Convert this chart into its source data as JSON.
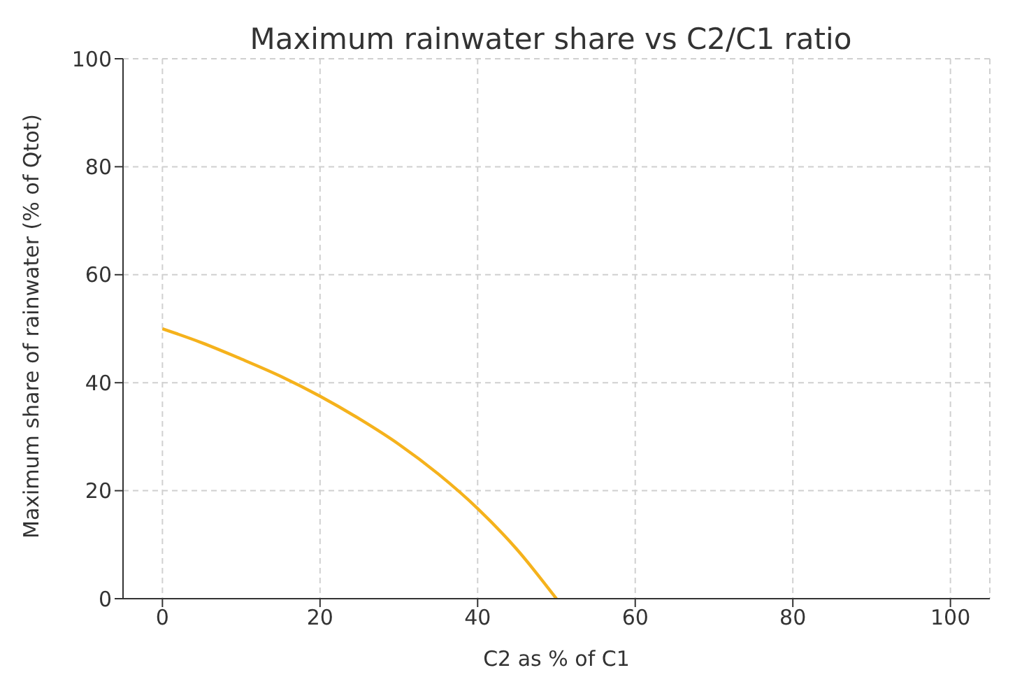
{
  "chart_data": {
    "type": "line",
    "title": "Maximum rainwater share vs C2/C1 ratio",
    "xlabel": "C2 as % of C1",
    "ylabel": "Maximum share of rainwater (% of Qtot)",
    "x": [
      0,
      5,
      10,
      15,
      20,
      25,
      30,
      35,
      40,
      45,
      50
    ],
    "series": [
      {
        "color": "#f5b21c",
        "values": [
          50,
          47.4,
          44.4,
          41.2,
          37.5,
          33.3,
          28.6,
          23.1,
          16.7,
          9.1,
          0
        ]
      }
    ],
    "xlim": [
      -5,
      105
    ],
    "xticks": [
      0,
      20,
      40,
      60,
      80,
      100
    ],
    "ylim": [
      0,
      100
    ],
    "yticks": [
      0,
      20,
      40,
      60,
      80,
      100
    ],
    "grid": true,
    "marker": "none",
    "line_style": "solid"
  }
}
